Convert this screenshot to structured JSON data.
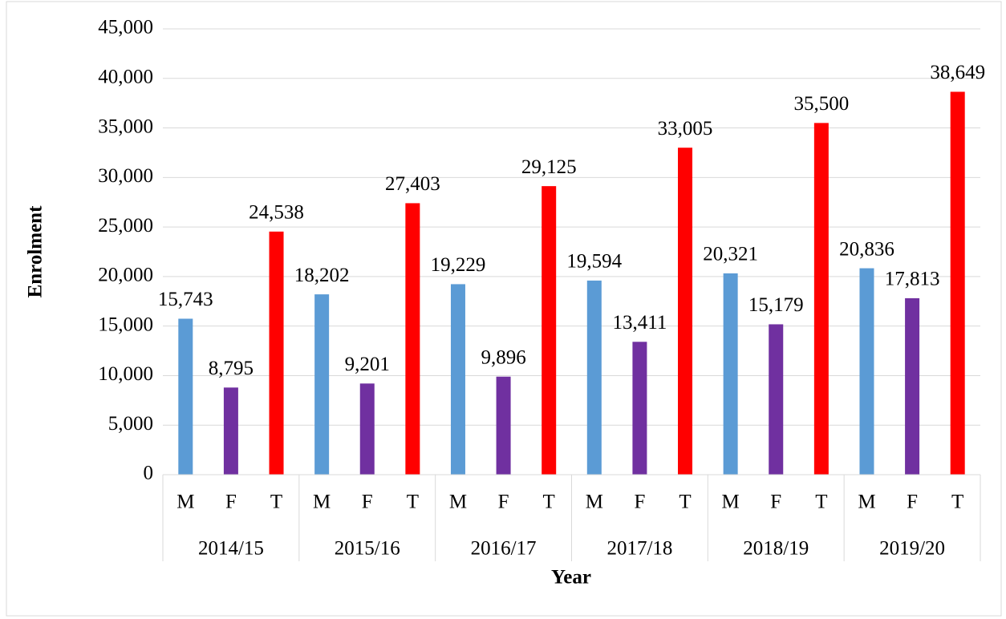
{
  "chart_data": {
    "type": "bar",
    "x_label": "Year",
    "y_label": "Enrolment",
    "colors": [
      "#5b9bd5",
      "#7030a0",
      "#ff0000"
    ],
    "groups": [
      {
        "label": "2014/15",
        "categories": [
          "M",
          "F",
          "T"
        ],
        "values": [
          15743,
          8795,
          24538
        ],
        "value_labels": [
          "15,743",
          "8,795",
          "24,538"
        ]
      },
      {
        "label": "2015/16",
        "categories": [
          "M",
          "F",
          "T"
        ],
        "values": [
          18202,
          9201,
          27403
        ],
        "value_labels": [
          "18,202",
          "9,201",
          "27,403"
        ]
      },
      {
        "label": "2016/17",
        "categories": [
          "M",
          "F",
          "T"
        ],
        "values": [
          19229,
          9896,
          29125
        ],
        "value_labels": [
          "19,229",
          "9,896",
          "29,125"
        ]
      },
      {
        "label": "2017/18",
        "categories": [
          "M",
          "F",
          "T"
        ],
        "values": [
          19594,
          13411,
          33005
        ],
        "value_labels": [
          "19,594",
          "13,411",
          "33,005"
        ]
      },
      {
        "label": "2018/19",
        "categories": [
          "M",
          "F",
          "T"
        ],
        "values": [
          20321,
          15179,
          35500
        ],
        "value_labels": [
          "20,321",
          "15,179",
          "35,500"
        ]
      },
      {
        "label": "2019/20",
        "categories": [
          "M",
          "F",
          "T"
        ],
        "values": [
          20836,
          17813,
          38649
        ],
        "value_labels": [
          "20,836",
          "17,813",
          "38,649"
        ]
      }
    ],
    "ylim": [
      0,
      45000
    ],
    "yticks": [
      0,
      {
        "value": 5000,
        "label": "5,000"
      },
      {
        "value": 10000,
        "label": "10,000"
      },
      {
        "value": 15000,
        "label": "15,000"
      },
      {
        "value": 20000,
        "label": "20,000"
      },
      {
        "value": 25000,
        "label": "25,000"
      },
      {
        "value": 30000,
        "label": "30,000"
      },
      {
        "value": 35000,
        "label": "35,000"
      },
      {
        "value": 40000,
        "label": "40,000"
      },
      {
        "value": 45000,
        "label": "45,000"
      }
    ],
    "grid": true
  }
}
